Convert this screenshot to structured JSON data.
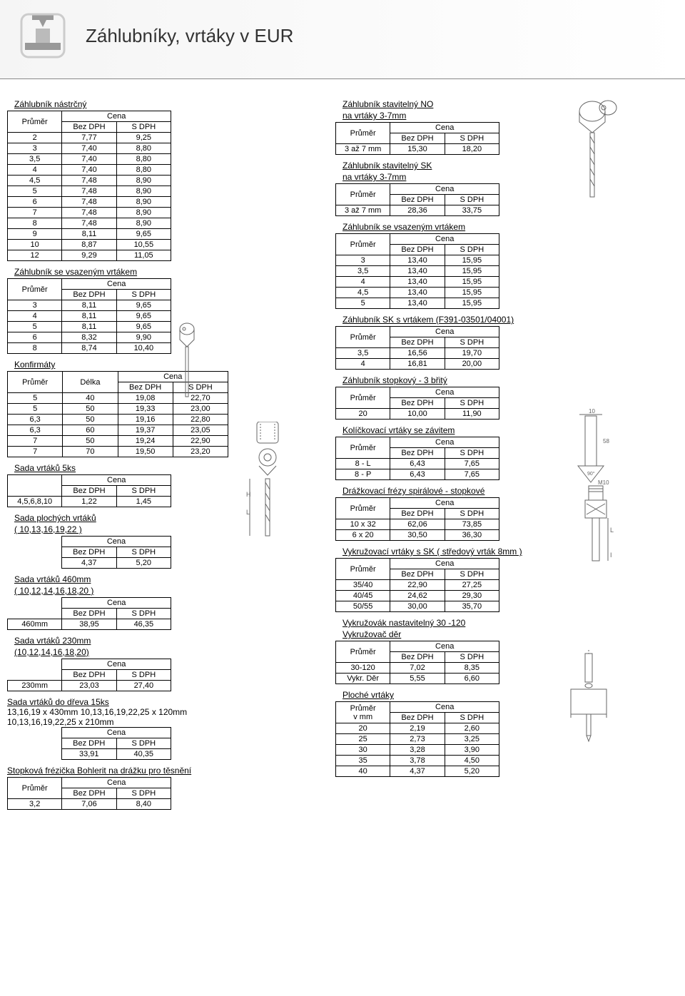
{
  "page": {
    "title": "Záhlubníky, vrtáky v EUR"
  },
  "labels": {
    "prumer": "Průměr",
    "prumer_mm": "Průměr\nv mm",
    "delka": "Délka",
    "cena": "Cena",
    "bez_dph": "Bez DPH",
    "s_dph": "S DPH"
  },
  "left": {
    "sec1": {
      "title": "Záhlubník nástrčný",
      "rows": [
        [
          "2",
          "7,77",
          "9,25"
        ],
        [
          "3",
          "7,40",
          "8,80"
        ],
        [
          "3,5",
          "7,40",
          "8,80"
        ],
        [
          "4",
          "7,40",
          "8,80"
        ],
        [
          "4,5",
          "7,48",
          "8,90"
        ],
        [
          "5",
          "7,48",
          "8,90"
        ],
        [
          "6",
          "7,48",
          "8,90"
        ],
        [
          "7",
          "7,48",
          "8,90"
        ],
        [
          "8",
          "7,48",
          "8,90"
        ],
        [
          "9",
          "8,11",
          "9,65"
        ],
        [
          "10",
          "8,87",
          "10,55"
        ],
        [
          "12",
          "9,29",
          "11,05"
        ]
      ]
    },
    "sec2": {
      "title": "Záhlubník se vsazeným vrtákem",
      "rows": [
        [
          "3",
          "8,11",
          "9,65"
        ],
        [
          "4",
          "8,11",
          "9,65"
        ],
        [
          "5",
          "8,11",
          "9,65"
        ],
        [
          "6",
          "8,32",
          "9,90"
        ],
        [
          "8",
          "8,74",
          "10,40"
        ]
      ]
    },
    "sec3": {
      "title": "Konfirmáty",
      "rows": [
        [
          "5",
          "40",
          "19,08",
          "22,70"
        ],
        [
          "5",
          "50",
          "19,33",
          "23,00"
        ],
        [
          "6,3",
          "50",
          "19,16",
          "22,80"
        ],
        [
          "6,3",
          "60",
          "19,37",
          "23,05"
        ],
        [
          "7",
          "50",
          "19,24",
          "22,90"
        ],
        [
          "7",
          "70",
          "19,50",
          "23,20"
        ]
      ]
    },
    "sec4": {
      "title": "Sada vrtáků 5ks",
      "row": [
        "4,5,6,8,10",
        "1,22",
        "1,45"
      ]
    },
    "sec5": {
      "title": "Sada plochých vrtáků",
      "sub": "( 10,13,16,19,22 )",
      "row": [
        "",
        "4,37",
        "5,20"
      ]
    },
    "sec6": {
      "title": "Sada vrtáků 460mm",
      "sub": "( 10,12,14,16,18,20 )",
      "row": [
        "460mm",
        "38,95",
        "46,35"
      ]
    },
    "sec7": {
      "title": "Sada vrtáků 230mm",
      "sub": "(10,12,14,16,18,20)",
      "row": [
        "230mm",
        "23,03",
        "27,40"
      ]
    },
    "sec8": {
      "title": "Sada vrtáků do dřeva 15ks",
      "line1": "13,16,19 x 430mm  10,13,16,19,22,25 x 120mm",
      "line2": "10,13,16,19,22,25 x 210mm",
      "row": [
        "",
        "33,91",
        "40,35"
      ]
    },
    "sec9": {
      "title": "Stopková frézička Bohlerit na drážku pro těsnění",
      "row": [
        "3,2",
        "7,06",
        "8,40"
      ]
    }
  },
  "right": {
    "sec1": {
      "title": "Záhlubník stavitelný NO",
      "sub": "na vrtáky 3-7mm",
      "row": [
        "3 až 7 mm",
        "15,30",
        "18,20"
      ]
    },
    "sec2": {
      "title": "Záhlubník stavitelný SK",
      "sub": "na vrtáky 3-7mm",
      "row": [
        "3 až 7 mm",
        "28,36",
        "33,75"
      ]
    },
    "sec3": {
      "title": "Záhlubník se vsazeným vrtákem",
      "rows": [
        [
          "3",
          "13,40",
          "15,95"
        ],
        [
          "3,5",
          "13,40",
          "15,95"
        ],
        [
          "4",
          "13,40",
          "15,95"
        ],
        [
          "4,5",
          "13,40",
          "15,95"
        ],
        [
          "5",
          "13,40",
          "15,95"
        ]
      ]
    },
    "sec4": {
      "title": "Záhlubník SK s vrtákem (F391-03501/04001)",
      "rows": [
        [
          "3,5",
          "16,56",
          "19,70"
        ],
        [
          "4",
          "16,81",
          "20,00"
        ]
      ]
    },
    "sec5": {
      "title": "Záhlubník stopkový - 3 břitý",
      "row": [
        "20",
        "10,00",
        "11,90"
      ]
    },
    "sec6": {
      "title": "Kolíčkovací vrtáky se závitem",
      "rows": [
        [
          "8 - L",
          "6,43",
          "7,65"
        ],
        [
          "8 - P",
          "6,43",
          "7,65"
        ]
      ]
    },
    "sec7": {
      "title": "Drážkovací frézy spirálové - stopkové",
      "rows": [
        [
          "10 x 32",
          "62,06",
          "73,85"
        ],
        [
          "6 x 20",
          "30,50",
          "36,30"
        ]
      ]
    },
    "sec8": {
      "title": "Vykružovací vrtáky s SK ( středový vrták 8mm )",
      "rows": [
        [
          "35/40",
          "22,90",
          "27,25"
        ],
        [
          "40/45",
          "24,62",
          "29,30"
        ],
        [
          "50/55",
          "30,00",
          "35,70"
        ]
      ]
    },
    "sec9": {
      "title": "Vykružovák nastavitelný 30 -120",
      "sub": "Vykružovač děr",
      "rows": [
        [
          "30-120",
          "7,02",
          "8,35"
        ],
        [
          "Vykr. Děr",
          "5,55",
          "6,60"
        ]
      ]
    },
    "sec10": {
      "title": "Ploché vrtáky",
      "rows": [
        [
          "20",
          "2,19",
          "2,60"
        ],
        [
          "25",
          "2,73",
          "3,25"
        ],
        [
          "30",
          "3,28",
          "3,90"
        ],
        [
          "35",
          "3,78",
          "4,50"
        ],
        [
          "40",
          "4,37",
          "5,20"
        ]
      ]
    }
  },
  "style": {
    "border_color": "#000000",
    "bg_color": "#ffffff",
    "text_color": "#000000",
    "title_fontsize": 26,
    "body_fontsize": 11
  }
}
